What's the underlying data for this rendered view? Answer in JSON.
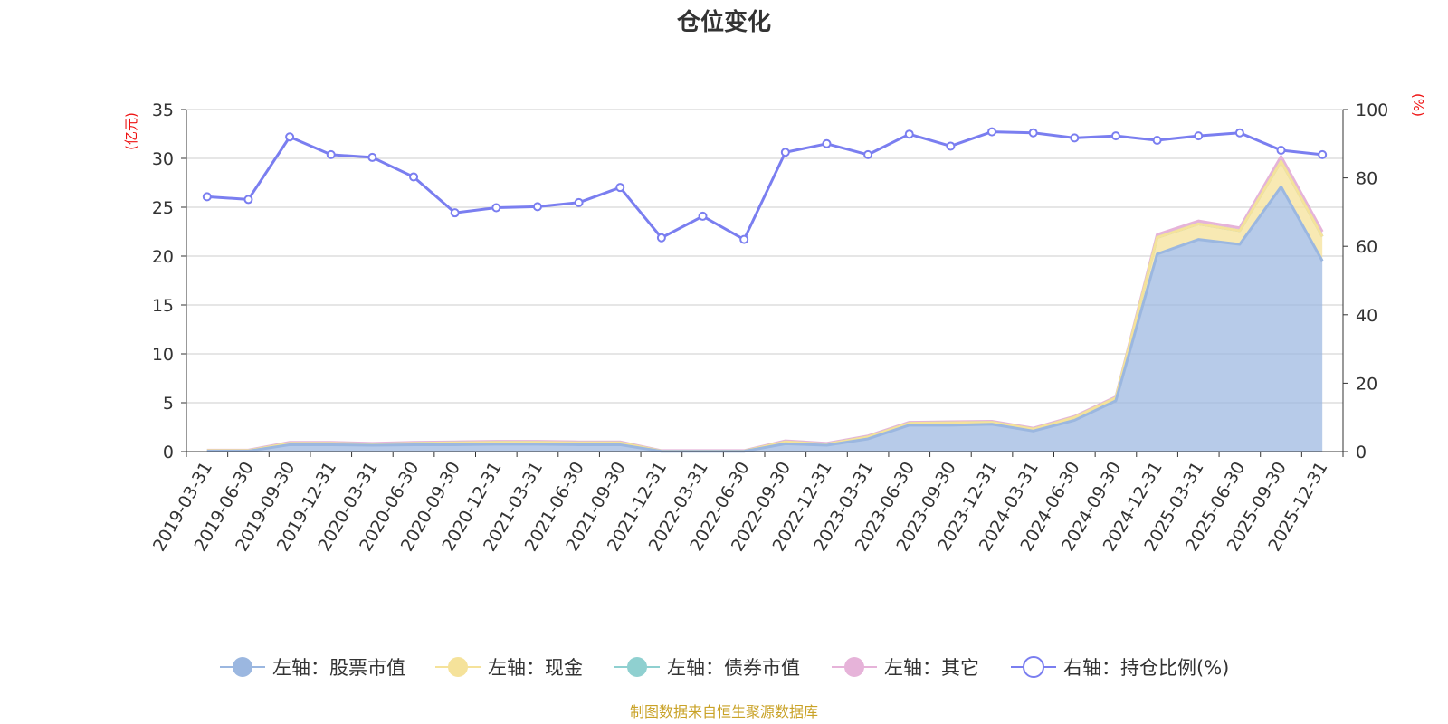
{
  "chart_data": {
    "type": "area",
    "title": "仓位变化",
    "left_axis": {
      "unit": "(亿元)",
      "min": 0,
      "max": 35,
      "ticks": [
        0,
        5,
        10,
        15,
        20,
        25,
        30,
        35
      ]
    },
    "right_axis": {
      "unit": "(%)",
      "min": 0,
      "max": 100,
      "ticks": [
        0,
        20,
        40,
        60,
        80,
        100
      ]
    },
    "x": [
      "2019-03-31",
      "2019-06-30",
      "2019-09-30",
      "2019-12-31",
      "2020-03-31",
      "2020-06-30",
      "2020-09-30",
      "2020-12-31",
      "2021-03-31",
      "2021-06-30",
      "2021-09-30",
      "2021-12-31",
      "2022-03-31",
      "2022-06-30",
      "2022-09-30",
      "2022-12-31",
      "2023-03-31",
      "2023-06-30",
      "2023-09-30",
      "2023-12-31",
      "2024-03-31",
      "2024-06-30",
      "2024-09-30",
      "2024-12-31",
      "2025-03-31",
      "2025-06-30",
      "2025-09-30",
      "2025-12-31"
    ],
    "grid": true,
    "legend_position": "bottom",
    "series": [
      {
        "name": "左轴：股票市值",
        "axis": "left",
        "stacked": true,
        "color": "#9bb7e0",
        "values": [
          0.05,
          0.05,
          0.7,
          0.7,
          0.65,
          0.7,
          0.7,
          0.75,
          0.75,
          0.7,
          0.7,
          0.02,
          0.02,
          0.02,
          0.8,
          0.65,
          1.3,
          2.7,
          2.7,
          2.8,
          2.1,
          3.2,
          5.2,
          20.2,
          21.7,
          21.2,
          27.1,
          19.5
        ]
      },
      {
        "name": "左轴：现金",
        "axis": "left",
        "stacked": true,
        "color": "#f5e29a",
        "values": [
          0.05,
          0.05,
          0.15,
          0.15,
          0.1,
          0.15,
          0.2,
          0.2,
          0.2,
          0.2,
          0.2,
          0.03,
          0.03,
          0.03,
          0.2,
          0.1,
          0.2,
          0.2,
          0.25,
          0.2,
          0.2,
          0.3,
          0.3,
          1.7,
          1.6,
          1.4,
          2.6,
          2.5
        ]
      },
      {
        "name": "左轴：债券市值",
        "axis": "left",
        "stacked": true,
        "color": "#8fd0d0",
        "values": [
          0,
          0,
          0,
          0,
          0,
          0,
          0,
          0,
          0,
          0,
          0,
          0,
          0,
          0,
          0,
          0,
          0,
          0,
          0,
          0,
          0,
          0,
          0,
          0,
          0,
          0,
          0,
          0
        ]
      },
      {
        "name": "左轴：其它",
        "axis": "left",
        "stacked": true,
        "color": "#e6b3d9",
        "values": [
          0.05,
          0.05,
          0.1,
          0.1,
          0.1,
          0.1,
          0.1,
          0.1,
          0.1,
          0.1,
          0.1,
          0.05,
          0.05,
          0.05,
          0.1,
          0.1,
          0.1,
          0.1,
          0.1,
          0.1,
          0.1,
          0.1,
          0.1,
          0.3,
          0.3,
          0.3,
          0.5,
          0.5
        ]
      },
      {
        "name": "右轴：持仓比例(%)",
        "axis": "right",
        "type": "line",
        "color": "#7a7ef0",
        "values": [
          74.5,
          73.7,
          92,
          86.8,
          86,
          80.3,
          69.8,
          71.3,
          71.6,
          72.8,
          77.2,
          62.5,
          68.8,
          62,
          87.5,
          90,
          86.8,
          92.8,
          89.3,
          93.5,
          93.2,
          91.7,
          92.3,
          91,
          92.3,
          93.2,
          88.1,
          86.8
        ]
      }
    ]
  },
  "source_note": "制图数据来自恒生聚源数据库"
}
